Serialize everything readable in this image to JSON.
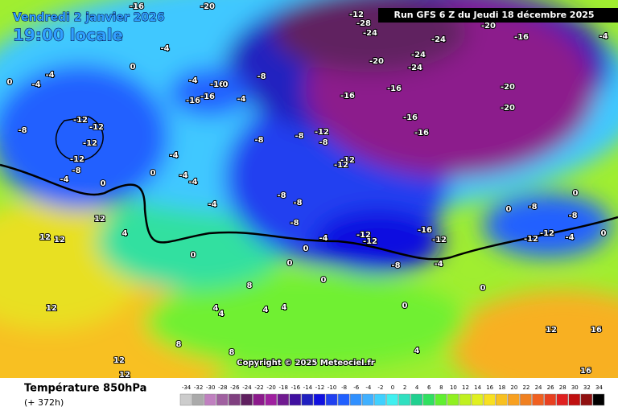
{
  "header": {
    "date": "Vendredi 2 janvier 2026",
    "time": "19:00 locale",
    "run": "Run GFS 6 Z du Jeudi 18 décembre 2025"
  },
  "copyright": "Copyright © 2025 Meteociel.fr",
  "footer": {
    "title": "Température 850hPa",
    "lead": "(+ 372h)"
  },
  "colorbar": {
    "values": [
      -34,
      -32,
      -30,
      -28,
      -26,
      -24,
      -22,
      -20,
      -18,
      -16,
      -14,
      -12,
      -10,
      -8,
      -6,
      -4,
      -2,
      0,
      2,
      4,
      6,
      8,
      10,
      12,
      14,
      16,
      18,
      20,
      22,
      24,
      26,
      28,
      30,
      32,
      34
    ],
    "colors": [
      "#cccccc",
      "#aaaaaa",
      "#c080c0",
      "#a060a0",
      "#804080",
      "#602060",
      "#8c1a8c",
      "#a020a0",
      "#701a90",
      "#4010a0",
      "#2020c0",
      "#1010e0",
      "#2040f0",
      "#2060ff",
      "#3090ff",
      "#40b0ff",
      "#40d0ff",
      "#40f0f0",
      "#30e0c0",
      "#20d090",
      "#30e060",
      "#60f030",
      "#90f020",
      "#c0f020",
      "#e0f020",
      "#f8e020",
      "#f8c020",
      "#f8a020",
      "#f08020",
      "#f06020",
      "#e84020",
      "#e02020",
      "#c01010",
      "#901010",
      "#000000"
    ]
  },
  "map_labels": [
    -20,
    -12,
    -28,
    -24,
    -24,
    -20,
    -16,
    -20,
    -24,
    -24,
    -16,
    -16,
    -20,
    -20,
    -16,
    -16,
    -12,
    -8,
    -8,
    -12,
    -12,
    -8,
    -12,
    -12,
    -12,
    -12,
    -8,
    -8,
    -4,
    -4,
    -4,
    -4,
    -4,
    -8,
    -8,
    -8,
    -12,
    -12,
    -16,
    -12,
    -4,
    -4,
    -8,
    0,
    0,
    0,
    0,
    0,
    0,
    0,
    0,
    12,
    12,
    12,
    4,
    8,
    4,
    4,
    4,
    4,
    8,
    8,
    12,
    12,
    12,
    4,
    16,
    16,
    12,
    -12,
    -12,
    -4,
    -8,
    -8,
    0,
    0,
    0,
    -16,
    -16,
    -16,
    -4,
    -8,
    -4,
    0,
    0,
    -4,
    -4,
    -4,
    -4,
    -16,
    0
  ]
}
